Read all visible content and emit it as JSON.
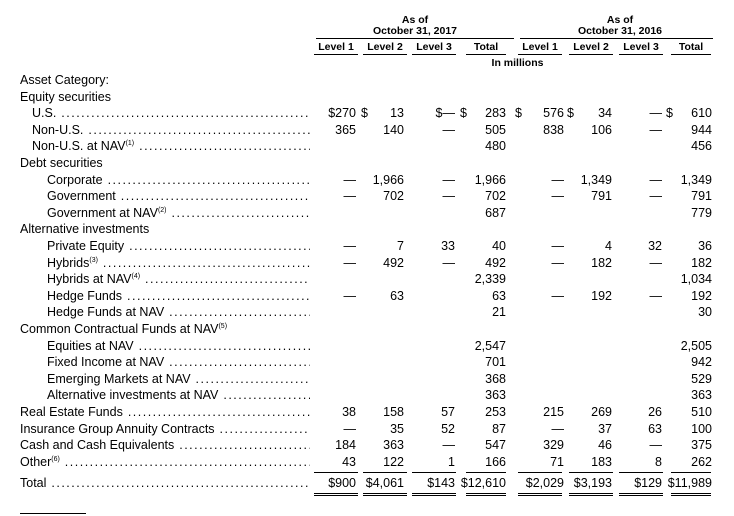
{
  "header": {
    "asof_2017": "As of",
    "date_2017": "October 31, 2017",
    "asof_2016": "As of",
    "date_2016": "October 31, 2016",
    "columns": [
      "Level 1",
      "Level 2",
      "Level 3",
      "Total",
      "Level 1",
      "Level 2",
      "Level 3",
      "Total"
    ],
    "units": "In millions"
  },
  "rows": [
    {
      "label": "Asset Category:",
      "indent": 0,
      "dots": false,
      "cells": [
        "",
        "",
        "",
        "",
        "",
        "",
        "",
        ""
      ]
    },
    {
      "label": "Equity securities",
      "indent": 0,
      "dots": false,
      "cells": [
        "",
        "",
        "",
        "",
        "",
        "",
        "",
        ""
      ]
    },
    {
      "label": "U.S.",
      "indent": 1,
      "dots": true,
      "cells": [
        "$270",
        "$ 13",
        "$—",
        "$ 283",
        "$ 576",
        "$ 34",
        "—",
        "$ 610"
      ]
    },
    {
      "label": "Non-U.S.",
      "indent": 1,
      "dots": true,
      "cells": [
        "365",
        "140",
        "—",
        "505",
        "838",
        "106",
        "—",
        "944"
      ]
    },
    {
      "label": "Non-U.S. at NAV",
      "sup": "(1)",
      "indent": 1,
      "dots": true,
      "cells": [
        "",
        "",
        "",
        "480",
        "",
        "",
        "",
        "456"
      ]
    },
    {
      "label": "Debt securities",
      "indent": 0,
      "dots": false,
      "cells": [
        "",
        "",
        "",
        "",
        "",
        "",
        "",
        ""
      ]
    },
    {
      "label": "Corporate",
      "indent": 2,
      "dots": true,
      "cells": [
        "—",
        "1,966",
        "—",
        "1,966",
        "—",
        "1,349",
        "—",
        "1,349"
      ]
    },
    {
      "label": "Government",
      "indent": 2,
      "dots": true,
      "cells": [
        "—",
        "702",
        "—",
        "702",
        "—",
        "791",
        "—",
        "791"
      ]
    },
    {
      "label": "Government at NAV",
      "sup": "(2)",
      "indent": 2,
      "dots": true,
      "cells": [
        "",
        "",
        "",
        "687",
        "",
        "",
        "",
        "779"
      ]
    },
    {
      "label": "Alternative investments",
      "indent": 0,
      "dots": false,
      "cells": [
        "",
        "",
        "",
        "",
        "",
        "",
        "",
        ""
      ]
    },
    {
      "label": "Private Equity",
      "indent": 2,
      "dots": true,
      "cells": [
        "—",
        "7",
        "33",
        "40",
        "—",
        "4",
        "32",
        "36"
      ]
    },
    {
      "label": "Hybrids",
      "sup": "(3)",
      "indent": 2,
      "dots": true,
      "cells": [
        "—",
        "492",
        "—",
        "492",
        "—",
        "182",
        "—",
        "182"
      ]
    },
    {
      "label": "Hybrids at NAV",
      "sup": "(4)",
      "indent": 2,
      "dots": true,
      "cells": [
        "",
        "",
        "",
        "2,339",
        "",
        "",
        "",
        "1,034"
      ]
    },
    {
      "label": "Hedge Funds",
      "indent": 2,
      "dots": true,
      "cells": [
        "—",
        "63",
        "",
        "63",
        "—",
        "192",
        "—",
        "192"
      ]
    },
    {
      "label": "Hedge Funds at NAV",
      "indent": 2,
      "dots": true,
      "cells": [
        "",
        "",
        "",
        "21",
        "",
        "",
        "",
        "30"
      ]
    },
    {
      "label": "Common Contractual Funds at NAV",
      "sup": "(5)",
      "indent": 0,
      "dots": false,
      "cells": [
        "",
        "",
        "",
        "",
        "",
        "",
        "",
        ""
      ]
    },
    {
      "label": "Equities at NAV",
      "indent": 2,
      "dots": true,
      "cells": [
        "",
        "",
        "",
        "2,547",
        "",
        "",
        "",
        "2,505"
      ]
    },
    {
      "label": "Fixed Income at NAV",
      "indent": 2,
      "dots": true,
      "cells": [
        "",
        "",
        "",
        "701",
        "",
        "",
        "",
        "942"
      ]
    },
    {
      "label": "Emerging Markets at NAV",
      "indent": 2,
      "dots": true,
      "cells": [
        "",
        "",
        "",
        "368",
        "",
        "",
        "",
        "529"
      ]
    },
    {
      "label": "Alternative investments at NAV",
      "indent": 2,
      "dots": true,
      "cells": [
        "",
        "",
        "",
        "363",
        "",
        "",
        "",
        "363"
      ]
    },
    {
      "label": "Real Estate Funds",
      "indent": 0,
      "dots": true,
      "cells": [
        "38",
        "158",
        "57",
        "253",
        "215",
        "269",
        "26",
        "510"
      ]
    },
    {
      "label": "Insurance Group Annuity Contracts",
      "indent": 0,
      "dots": true,
      "cells": [
        "—",
        "35",
        "52",
        "87",
        "—",
        "37",
        "63",
        "100"
      ]
    },
    {
      "label": "Cash and Cash Equivalents",
      "indent": 0,
      "dots": true,
      "cells": [
        "184",
        "363",
        "—",
        "547",
        "329",
        "46",
        "—",
        "375"
      ]
    },
    {
      "label": "Other",
      "sup": "(6)",
      "indent": 0,
      "dots": true,
      "cells": [
        "43",
        "122",
        "1",
        "166",
        "71",
        "183",
        "8",
        "262"
      ]
    },
    {
      "label": "Total",
      "indent": 0,
      "dots": true,
      "total": true,
      "cells": [
        "$900",
        "$4,061",
        "$143",
        "$12,610",
        "$2,029",
        "$3,193",
        "$129",
        "$11,989"
      ]
    }
  ]
}
